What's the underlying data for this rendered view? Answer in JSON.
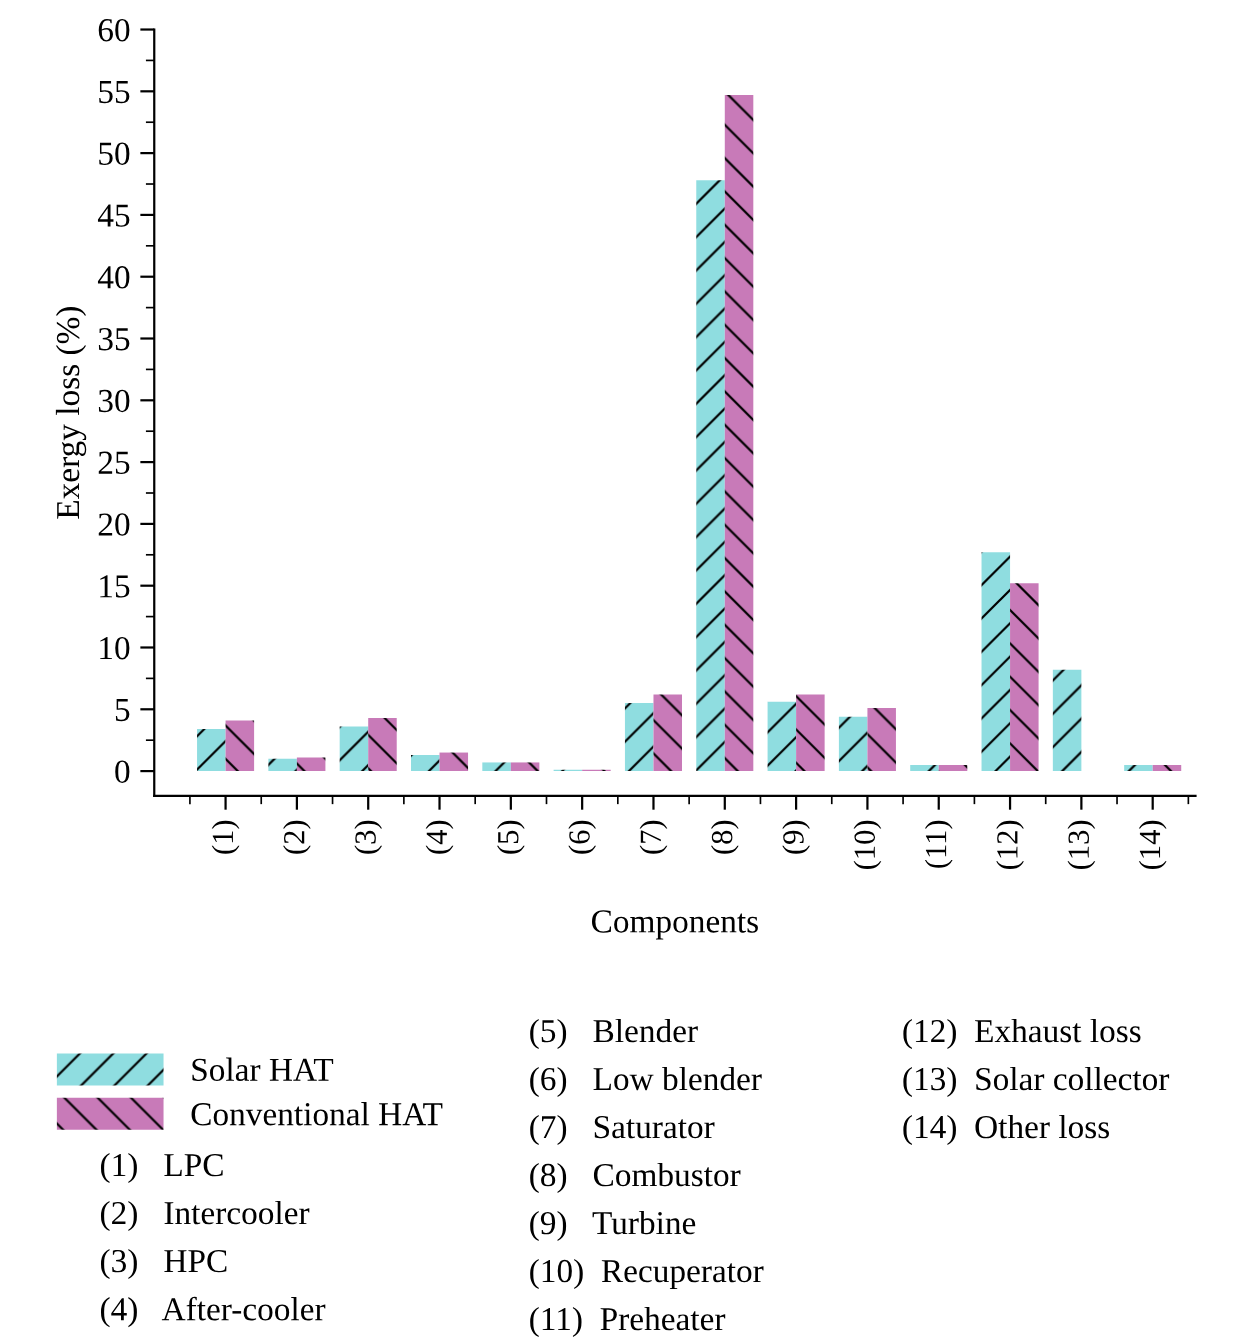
{
  "chart_data": {
    "type": "bar",
    "ylabel": "Exergy loss (%)",
    "xlabel": "Components",
    "categories": [
      "(1)",
      "(2)",
      "(3)",
      "(4)",
      "(5)",
      "(6)",
      "(7)",
      "(8)",
      "(9)",
      "(10)",
      "(11)",
      "(12)",
      "(13)",
      "(14)"
    ],
    "series": [
      {
        "name": "Solar HAT",
        "color": "#8fdde0",
        "values": [
          3.4,
          1.0,
          3.6,
          1.3,
          0.7,
          0.1,
          5.5,
          47.8,
          5.6,
          4.4,
          0.5,
          17.7,
          8.2,
          0.5
        ]
      },
      {
        "name": "Conventional HAT",
        "color": "#c87ab8",
        "values": [
          4.1,
          1.1,
          4.3,
          1.5,
          0.7,
          0.1,
          6.2,
          54.7,
          6.2,
          5.1,
          0.5,
          15.2,
          0.0,
          0.5
        ]
      }
    ],
    "ylim": [
      -2,
      60
    ],
    "yticks": [
      0,
      5,
      10,
      15,
      20,
      25,
      30,
      35,
      40,
      45,
      50,
      55,
      60
    ],
    "grid": false,
    "legend": "bottom left",
    "annotations": [
      "(1)   LPC",
      "(2)   Intercooler",
      "(3)   HPC",
      "(4)   After-cooler",
      "(5)   Blender",
      "(6)   Low blender",
      "(7)   Saturator",
      "(8)   Combustor",
      "(9)   Turbine",
      "(10)  Recuperator",
      "(11)  Preheater",
      "(12)  Exhaust loss",
      "(13)  Solar collector",
      "(14)  Other loss"
    ]
  }
}
